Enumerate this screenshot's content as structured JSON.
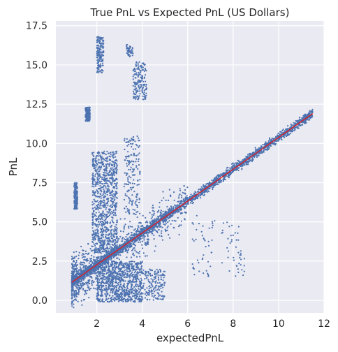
{
  "chart_data": {
    "type": "scatter",
    "title": "True PnL vs Expected PnL (US Dollars)",
    "xlabel": "expectedPnL",
    "ylabel": "PnL",
    "xlim": [
      0.2,
      12.0
    ],
    "ylim": [
      -0.8,
      17.8
    ],
    "x_ticks": [
      2,
      4,
      6,
      8,
      10,
      12
    ],
    "x_tick_labels": [
      "2",
      "4",
      "6",
      "8",
      "10",
      "12"
    ],
    "y_ticks": [
      0.0,
      2.5,
      5.0,
      7.5,
      10.0,
      12.5,
      15.0,
      17.5
    ],
    "y_tick_labels": [
      "0.0",
      "2.5",
      "5.0",
      "7.5",
      "10.0",
      "12.5",
      "15.0",
      "17.5"
    ],
    "grid": true,
    "point_color": "#4c72b0",
    "background_color": "#eaeaf2",
    "fit_line": {
      "color": "#e41a1c",
      "x": [
        0.9,
        11.5
      ],
      "y": [
        1.15,
        11.9
      ]
    },
    "clusters": [
      {
        "x": [
          0.9,
          11.5
        ],
        "y_offset": [
          -0.5,
          0.5
        ],
        "follows_fit": true,
        "density": "very high"
      },
      {
        "x": [
          0.9,
          6.0
        ],
        "y_offset": [
          -2.2,
          2.5
        ],
        "follows_fit": true,
        "density": "high"
      },
      {
        "x": [
          1.0,
          1.15
        ],
        "y": [
          5.8,
          7.5
        ],
        "density": "medium"
      },
      {
        "x": [
          1.5,
          1.7
        ],
        "y": [
          11.4,
          12.3
        ],
        "density": "medium"
      },
      {
        "x": [
          2.0,
          2.3
        ],
        "y": [
          14.5,
          16.8
        ],
        "density": "medium"
      },
      {
        "x": [
          1.8,
          2.9
        ],
        "y": [
          3.0,
          9.5
        ],
        "density": "high"
      },
      {
        "x": [
          3.3,
          3.6
        ],
        "y": [
          15.5,
          16.3
        ],
        "density": "low"
      },
      {
        "x": [
          3.6,
          4.2
        ],
        "y": [
          12.8,
          15.2
        ],
        "density": "medium"
      },
      {
        "x": [
          3.2,
          3.9
        ],
        "y": [
          5.5,
          10.5
        ],
        "density": "medium"
      },
      {
        "x": [
          2.0,
          4.0
        ],
        "y": [
          -0.1,
          2.5
        ],
        "density": "high"
      },
      {
        "x": [
          4.0,
          5.0
        ],
        "y": [
          0.0,
          2.0
        ],
        "density": "medium"
      },
      {
        "x": [
          6.2,
          7.2
        ],
        "y": [
          1.5,
          5.5
        ],
        "density": "low"
      },
      {
        "x": [
          7.5,
          8.5
        ],
        "y": [
          1.5,
          5.0
        ],
        "density": "low"
      }
    ]
  }
}
